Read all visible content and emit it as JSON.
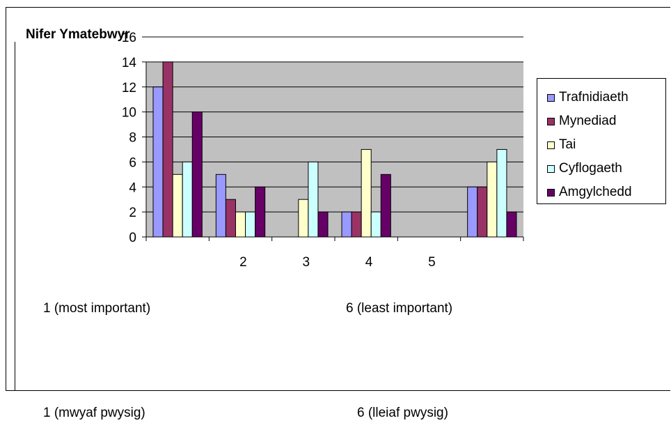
{
  "chart_data": {
    "type": "bar",
    "ylabel": "Nifer Ymatebwyr",
    "categories": [
      "",
      "2",
      "3",
      "4",
      "5",
      ""
    ],
    "yticks": [
      "0",
      "2",
      "4",
      "6",
      "8",
      "10",
      "12",
      "14",
      "16"
    ],
    "ylim": [
      0,
      16
    ],
    "grid": true,
    "legend_position": "right",
    "series": [
      {
        "name": "Trafnidiaeth",
        "color": "#9999ff",
        "values": [
          12,
          5,
          0,
          2,
          0,
          4
        ]
      },
      {
        "name": "Mynediad",
        "color": "#993366",
        "values": [
          14,
          3,
          0,
          2,
          0,
          4
        ]
      },
      {
        "name": "Tai",
        "color": "#ffffcc",
        "values": [
          5,
          2,
          3,
          7,
          0,
          6
        ]
      },
      {
        "name": "Cyflogaeth",
        "color": "#ccffff",
        "values": [
          6,
          2,
          6,
          2,
          0,
          7
        ]
      },
      {
        "name": "Amgylchedd",
        "color": "#660066",
        "values": [
          10,
          4,
          2,
          5,
          0,
          2
        ]
      }
    ]
  },
  "footnotes": {
    "en_left": "1 (most important)",
    "en_right": "6 (least important)",
    "cy_left": "1 (mwyaf pwysig)",
    "cy_right": "6 (lleiaf pwysig)"
  },
  "colors": {
    "plot_bg": "#c0c0c0",
    "grid": "#000000"
  }
}
